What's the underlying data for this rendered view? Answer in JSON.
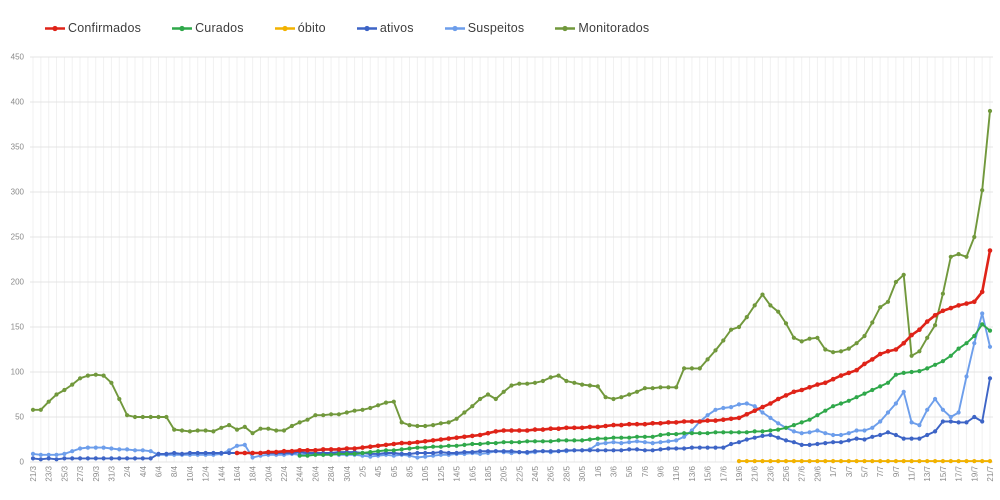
{
  "chart_data": {
    "type": "line",
    "title": "",
    "xlabel": "",
    "ylabel": "",
    "ylim": [
      0,
      450
    ],
    "y_ticks": [
      0,
      50,
      100,
      150,
      200,
      250,
      300,
      350,
      400,
      450
    ],
    "grid": true,
    "legend_position": "top",
    "x_tick_every": 2,
    "axis_label_color": "#8a8a8a",
    "grid_color_h": "#e4e4e4",
    "grid_color_v": "#f1f1f1",
    "x_labels": [
      "21/3",
      "22/3",
      "23/3",
      "24/3",
      "25/3",
      "26/3",
      "27/3",
      "28/3",
      "29/3",
      "30/3",
      "31/3",
      "1/4",
      "2/4",
      "3/4",
      "4/4",
      "5/4",
      "6/4",
      "7/4",
      "8/4",
      "9/4",
      "10/4",
      "11/4",
      "12/4",
      "13/4",
      "14/4",
      "15/4",
      "16/4",
      "17/4",
      "18/4",
      "19/4",
      "20/4",
      "21/4",
      "22/4",
      "23/4",
      "24/4",
      "25/4",
      "26/4",
      "27/4",
      "28/4",
      "29/4",
      "30/4",
      "1/5",
      "2/5",
      "3/5",
      "4/5",
      "5/5",
      "6/5",
      "7/5",
      "8/5",
      "9/5",
      "10/5",
      "11/5",
      "12/5",
      "13/5",
      "14/5",
      "15/5",
      "16/5",
      "17/5",
      "18/5",
      "19/5",
      "20/5",
      "21/5",
      "22/5",
      "23/5",
      "24/5",
      "25/5",
      "26/5",
      "27/5",
      "28/5",
      "29/5",
      "30/5",
      "31/5",
      "1/6",
      "2/6",
      "3/6",
      "4/6",
      "5/6",
      "6/6",
      "7/6",
      "8/6",
      "9/6",
      "10/6",
      "11/6",
      "12/6",
      "13/6",
      "14/6",
      "15/6",
      "16/6",
      "17/6",
      "18/6",
      "19/6",
      "20/6",
      "21/6",
      "22/6",
      "23/6",
      "24/6",
      "25/6",
      "26/6",
      "27/6",
      "28/6",
      "29/6",
      "30/6",
      "1/7",
      "2/7",
      "3/7",
      "4/7",
      "5/7",
      "6/7",
      "7/7",
      "8/7",
      "9/7",
      "10/7",
      "11/7",
      "12/7",
      "13/7",
      "14/7",
      "15/7",
      "16/7",
      "17/7",
      "18/7",
      "19/7",
      "20/7",
      "21/7"
    ],
    "series": [
      {
        "name": "Confirmados",
        "color": "#df2318",
        "values": [
          null,
          null,
          null,
          null,
          null,
          null,
          null,
          null,
          null,
          null,
          null,
          null,
          null,
          null,
          null,
          null,
          null,
          null,
          null,
          null,
          null,
          null,
          null,
          null,
          null,
          null,
          10,
          10,
          10,
          10,
          11,
          11,
          12,
          12,
          13,
          13,
          13,
          14,
          14,
          14,
          15,
          15,
          16,
          17,
          18,
          19,
          20,
          21,
          21,
          22,
          23,
          24,
          25,
          26,
          27,
          28,
          29,
          30,
          32,
          34,
          35,
          35,
          35,
          35,
          36,
          36,
          37,
          37,
          38,
          38,
          38,
          39,
          39,
          40,
          41,
          41,
          42,
          42,
          42,
          43,
          43,
          44,
          44,
          45,
          45,
          45,
          46,
          46,
          47,
          48,
          49,
          53,
          57,
          61,
          65,
          70,
          74,
          78,
          80,
          83,
          86,
          88,
          92,
          96,
          99,
          102,
          109,
          114,
          120,
          123,
          125,
          132,
          141,
          147,
          156,
          163,
          168,
          171,
          174,
          176,
          178,
          189,
          235
        ]
      },
      {
        "name": "Curados",
        "color": "#2fa84a",
        "values": [
          null,
          null,
          null,
          null,
          null,
          null,
          null,
          null,
          null,
          null,
          null,
          null,
          null,
          null,
          null,
          null,
          null,
          null,
          null,
          null,
          null,
          null,
          null,
          null,
          null,
          null,
          null,
          null,
          null,
          null,
          null,
          null,
          null,
          null,
          7,
          7,
          8,
          8,
          8,
          9,
          9,
          9,
          10,
          11,
          12,
          13,
          13,
          14,
          15,
          16,
          16,
          17,
          17,
          18,
          18,
          19,
          20,
          20,
          21,
          21,
          22,
          22,
          22,
          23,
          23,
          23,
          23,
          24,
          24,
          24,
          24,
          25,
          26,
          26,
          27,
          27,
          27,
          28,
          28,
          28,
          30,
          31,
          31,
          32,
          32,
          32,
          32,
          33,
          33,
          33,
          33,
          33,
          34,
          34,
          35,
          36,
          38,
          41,
          44,
          47,
          52,
          57,
          62,
          65,
          68,
          72,
          76,
          80,
          84,
          88,
          97,
          99,
          100,
          101,
          104,
          108,
          112,
          118,
          126,
          132,
          140,
          153,
          146
        ]
      },
      {
        "name": "óbito",
        "color": "#f2b200",
        "values": [
          null,
          null,
          null,
          null,
          null,
          null,
          null,
          null,
          null,
          null,
          null,
          null,
          null,
          null,
          null,
          null,
          null,
          null,
          null,
          null,
          null,
          null,
          null,
          null,
          null,
          null,
          null,
          null,
          null,
          null,
          null,
          null,
          null,
          null,
          null,
          null,
          null,
          null,
          null,
          null,
          null,
          null,
          null,
          null,
          null,
          null,
          null,
          null,
          null,
          null,
          null,
          null,
          null,
          null,
          null,
          null,
          null,
          null,
          null,
          null,
          null,
          null,
          null,
          null,
          null,
          null,
          null,
          null,
          null,
          null,
          null,
          null,
          null,
          null,
          null,
          null,
          null,
          null,
          null,
          null,
          null,
          null,
          null,
          null,
          null,
          null,
          null,
          null,
          null,
          null,
          1,
          1,
          1,
          1,
          1,
          1,
          1,
          1,
          1,
          1,
          1,
          1,
          1,
          1,
          1,
          1,
          1,
          1,
          1,
          1,
          1,
          1,
          1,
          1,
          1,
          1,
          1,
          1,
          1,
          1,
          1,
          1,
          1
        ]
      },
      {
        "name": "ativos",
        "color": "#3d64c6",
        "values": [
          4,
          3,
          4,
          3,
          4,
          4,
          4,
          4,
          4,
          4,
          4,
          4,
          4,
          4,
          4,
          4,
          9,
          9,
          10,
          9,
          10,
          10,
          10,
          10,
          10,
          10,
          10,
          10,
          10,
          10,
          10,
          10,
          10,
          10,
          11,
          10,
          10,
          10,
          10,
          11,
          11,
          11,
          10,
          9,
          9,
          10,
          10,
          9,
          9,
          10,
          10,
          10,
          11,
          10,
          10,
          11,
          11,
          12,
          12,
          12,
          12,
          12,
          11,
          11,
          12,
          12,
          12,
          12,
          13,
          13,
          13,
          13,
          13,
          13,
          13,
          13,
          14,
          14,
          13,
          13,
          14,
          15,
          15,
          15,
          16,
          16,
          16,
          16,
          16,
          20,
          22,
          25,
          27,
          29,
          30,
          27,
          24,
          22,
          19,
          19,
          20,
          21,
          22,
          22,
          24,
          26,
          25,
          28,
          30,
          33,
          30,
          26,
          26,
          26,
          30,
          34,
          45,
          45,
          44,
          44,
          50,
          45,
          93
        ]
      },
      {
        "name": "Suspeitos",
        "color": "#6d9eeb",
        "values": [
          9,
          8,
          8,
          8,
          9,
          12,
          15,
          16,
          16,
          16,
          15,
          14,
          14,
          13,
          13,
          12,
          8,
          8,
          8,
          8,
          8,
          8,
          8,
          8,
          9,
          13,
          18,
          19,
          5,
          7,
          8,
          8,
          8,
          9,
          8,
          9,
          9,
          8,
          9,
          8,
          8,
          8,
          7,
          6,
          7,
          8,
          7,
          8,
          7,
          5,
          6,
          7,
          8,
          8,
          9,
          9,
          10,
          9,
          10,
          12,
          11,
          10,
          11,
          10,
          11,
          12,
          11,
          12,
          12,
          13,
          13,
          14,
          20,
          21,
          22,
          21,
          22,
          23,
          22,
          21,
          22,
          23,
          24,
          28,
          35,
          45,
          52,
          58,
          60,
          61,
          64,
          65,
          62,
          55,
          49,
          43,
          38,
          34,
          32,
          33,
          35,
          32,
          30,
          30,
          32,
          35,
          35,
          38,
          45,
          55,
          65,
          78,
          44,
          41,
          58,
          70,
          58,
          50,
          55,
          95,
          132,
          165,
          128
        ]
      },
      {
        "name": "Monitorados",
        "color": "#71983c",
        "values": [
          58,
          58,
          67,
          75,
          80,
          86,
          93,
          96,
          97,
          96,
          88,
          70,
          52,
          50,
          50,
          50,
          50,
          50,
          36,
          35,
          34,
          35,
          35,
          34,
          38,
          41,
          36,
          39,
          32,
          37,
          37,
          35,
          35,
          40,
          44,
          47,
          52,
          52,
          53,
          53,
          55,
          57,
          58,
          60,
          63,
          66,
          67,
          44,
          41,
          40,
          40,
          41,
          43,
          44,
          48,
          55,
          62,
          70,
          75,
          70,
          78,
          85,
          87,
          87,
          88,
          90,
          94,
          96,
          90,
          88,
          86,
          85,
          84,
          72,
          70,
          72,
          75,
          78,
          82,
          82,
          83,
          83,
          83,
          104,
          104,
          104,
          114,
          124,
          135,
          147,
          150,
          161,
          174,
          186,
          174,
          167,
          154,
          138,
          134,
          137,
          138,
          125,
          122,
          123,
          126,
          132,
          140,
          155,
          172,
          178,
          200,
          208,
          118,
          123,
          138,
          152,
          187,
          228,
          231,
          228,
          250,
          302,
          390
        ]
      }
    ]
  }
}
